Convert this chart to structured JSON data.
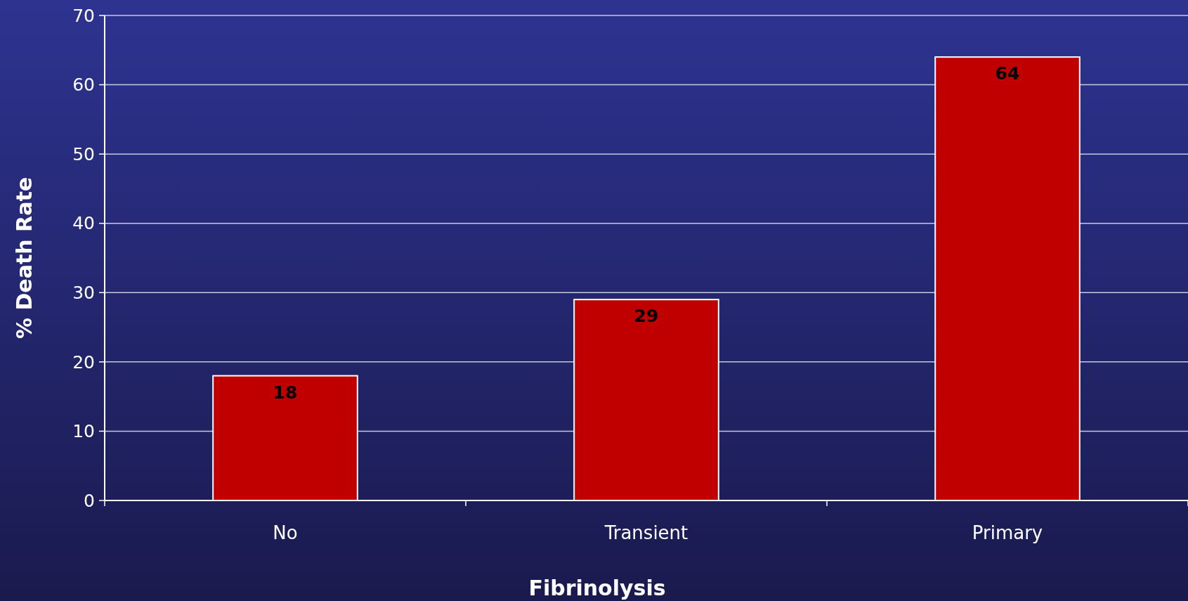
{
  "chart_data": {
    "type": "bar",
    "xlabel": "Fibrinolysis",
    "ylabel": "% Death Rate",
    "categories": [
      "No",
      "Transient",
      "Primary"
    ],
    "values": [
      18,
      29,
      64
    ],
    "color": "#c00000",
    "ylim": [
      0,
      70
    ],
    "yticks": [
      0,
      10,
      20,
      30,
      40,
      50,
      60,
      70
    ],
    "grid": "y",
    "data_labels": true
  }
}
